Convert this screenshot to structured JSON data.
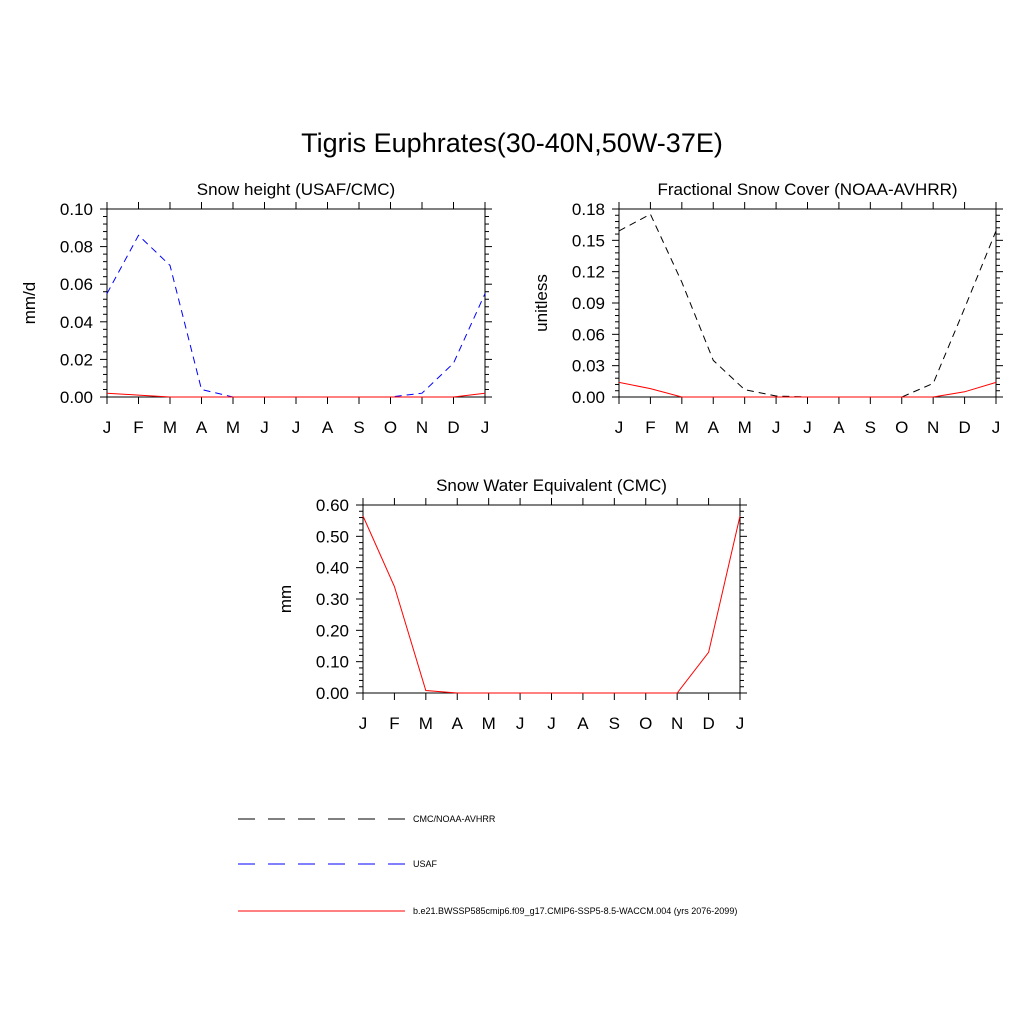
{
  "title": "Tigris Euphrates(30-40N,50W-37E)",
  "colors": {
    "obs_cmc": "#000000",
    "obs_usaf": "#0000ff",
    "model": "#ff0000"
  },
  "chart_data": [
    {
      "type": "line",
      "title": "Snow height (USAF/CMC)",
      "ylabel": "mm/d",
      "xlabel": "",
      "categories": [
        "J",
        "F",
        "M",
        "A",
        "M",
        "J",
        "J",
        "A",
        "S",
        "O",
        "N",
        "D",
        "J"
      ],
      "ylim": [
        0,
        0.1
      ],
      "yticks": [
        "0.00",
        "0.02",
        "0.04",
        "0.06",
        "0.08",
        "0.10"
      ],
      "series": [
        {
          "name": "USAF",
          "style": "dashed",
          "color": "#0000ff",
          "values": [
            0.055,
            0.086,
            0.07,
            0.004,
            0.0,
            0.0,
            0.0,
            0.0,
            0.0,
            0.0,
            0.002,
            0.018,
            0.055
          ]
        },
        {
          "name": "b.e21.BWSSP585cmip6.f09_g17.CMIP6-SSP5-8.5-WACCM.004 (yrs 2076-2099)",
          "style": "solid",
          "color": "#ff0000",
          "values": [
            0.002,
            0.001,
            0.0,
            0.0,
            0.0,
            0.0,
            0.0,
            0.0,
            0.0,
            0.0,
            0.0,
            0.0,
            0.002
          ]
        }
      ]
    },
    {
      "type": "line",
      "title": "Fractional Snow Cover (NOAA-AVHRR)",
      "ylabel": "unitless",
      "xlabel": "",
      "categories": [
        "J",
        "F",
        "M",
        "A",
        "M",
        "J",
        "J",
        "A",
        "S",
        "O",
        "N",
        "D",
        "J"
      ],
      "ylim": [
        0,
        0.18
      ],
      "yticks": [
        "0.00",
        "0.03",
        "0.06",
        "0.09",
        "0.12",
        "0.15",
        "0.18"
      ],
      "series": [
        {
          "name": "CMC/NOAA-AVHRR",
          "style": "dashed",
          "color": "#000000",
          "values": [
            0.159,
            0.175,
            0.11,
            0.035,
            0.007,
            0.001,
            0.0,
            0.0,
            0.0,
            0.0,
            0.013,
            0.085,
            0.159
          ]
        },
        {
          "name": "b.e21.BWSSP585cmip6.f09_g17.CMIP6-SSP5-8.5-WACCM.004 (yrs 2076-2099)",
          "style": "solid",
          "color": "#ff0000",
          "values": [
            0.014,
            0.008,
            0.0,
            0.0,
            0.0,
            0.0,
            0.0,
            0.0,
            0.0,
            0.0,
            0.0,
            0.005,
            0.014
          ]
        }
      ]
    },
    {
      "type": "line",
      "title": "Snow Water Equivalent (CMC)",
      "ylabel": "mm",
      "xlabel": "",
      "categories": [
        "J",
        "F",
        "M",
        "A",
        "M",
        "J",
        "J",
        "A",
        "S",
        "O",
        "N",
        "D",
        "J"
      ],
      "ylim": [
        0,
        0.6
      ],
      "yticks": [
        "0.00",
        "0.10",
        "0.20",
        "0.30",
        "0.40",
        "0.50",
        "0.60"
      ],
      "series": [
        {
          "name": "CMC/NOAA-AVHRR",
          "style": "dashed",
          "color": "#000000",
          "values": [
            0.0,
            0.0,
            0.0,
            0.0,
            0.0,
            0.0,
            0.0,
            0.0,
            0.0,
            0.0,
            0.0,
            0.0,
            0.0
          ]
        },
        {
          "name": "b.e21.BWSSP585cmip6.f09_g17.CMIP6-SSP5-8.5-WACCM.004 (yrs 2076-2099)",
          "style": "solid",
          "color": "#ff0000",
          "values": [
            0.565,
            0.34,
            0.008,
            0.0,
            0.0,
            0.0,
            0.0,
            0.0,
            0.0,
            0.0,
            0.0,
            0.13,
            0.565
          ]
        }
      ]
    }
  ],
  "legend": [
    {
      "label": "CMC/NOAA-AVHRR",
      "style": "dashed",
      "color": "#000000"
    },
    {
      "label": "USAF",
      "style": "dashed",
      "color": "#0000ff"
    },
    {
      "label": "b.e21.BWSSP585cmip6.f09_g17.CMIP6-SSP5-8.5-WACCM.004 (yrs 2076-2099)",
      "style": "solid",
      "color": "#ff0000"
    }
  ]
}
